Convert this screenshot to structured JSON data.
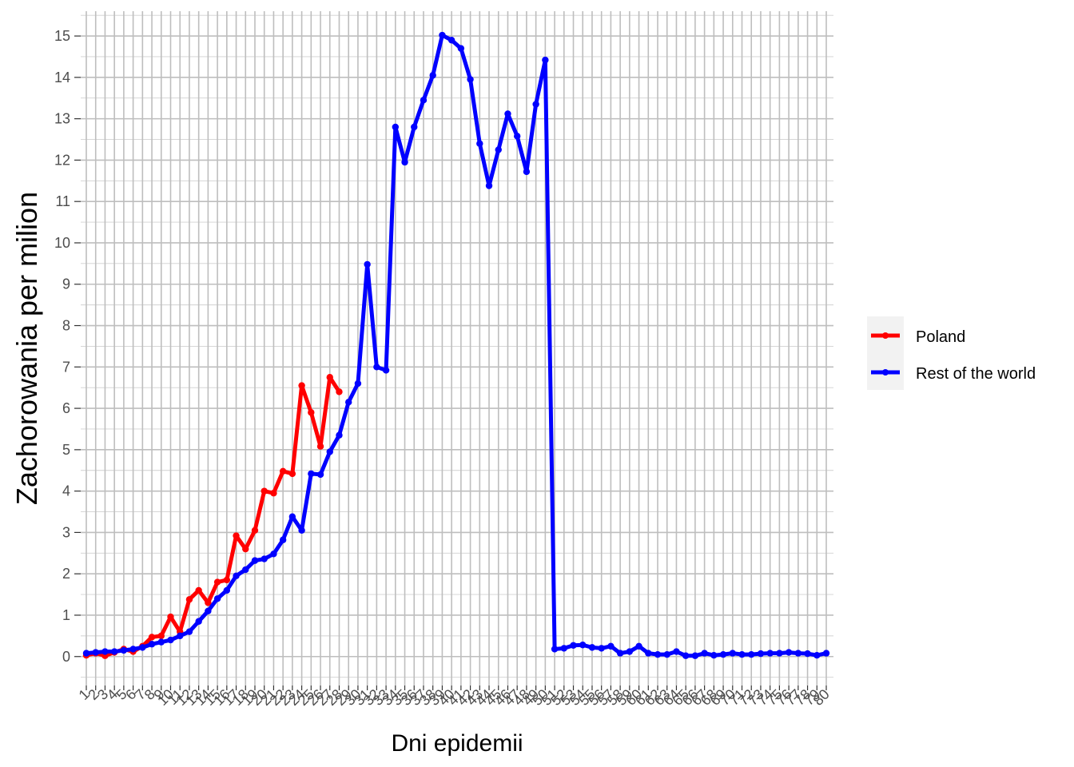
{
  "chart_data": {
    "type": "line",
    "xlabel": "Dni epidemii",
    "ylabel": "Zachorowania per milion",
    "ylim": [
      -0.7,
      15.6
    ],
    "y_ticks": [
      0,
      1,
      2,
      3,
      4,
      5,
      6,
      7,
      8,
      9,
      10,
      11,
      12,
      13,
      14,
      15
    ],
    "x_ticks": [
      1,
      2,
      3,
      4,
      5,
      6,
      7,
      8,
      9,
      10,
      11,
      12,
      13,
      14,
      15,
      16,
      17,
      18,
      19,
      20,
      21,
      22,
      23,
      24,
      25,
      26,
      27,
      28,
      29,
      30,
      31,
      32,
      33,
      34,
      35,
      36,
      37,
      38,
      39,
      40,
      41,
      42,
      43,
      44,
      45,
      46,
      47,
      48,
      49,
      50,
      51,
      52,
      53,
      54,
      55,
      56,
      57,
      58,
      59,
      60,
      61,
      62,
      63,
      64,
      65,
      66,
      67,
      68,
      69,
      70,
      71,
      72,
      73,
      74,
      75,
      76,
      77,
      78,
      79,
      80
    ],
    "grid": true,
    "legend_position": "right",
    "series": [
      {
        "name": "Poland",
        "color": "#ff0000",
        "values": [
          0.03,
          0.08,
          0.02,
          0.1,
          0.18,
          0.12,
          0.25,
          0.47,
          0.5,
          0.96,
          0.6,
          1.38,
          1.6,
          1.3,
          1.8,
          1.85,
          2.92,
          2.6,
          3.05,
          4.0,
          3.95,
          4.48,
          4.42,
          6.55,
          5.9,
          5.08,
          6.75,
          6.4
        ]
      },
      {
        "name": "Rest of the world",
        "color": "#0000ff",
        "values": [
          0.08,
          0.1,
          0.12,
          0.12,
          0.15,
          0.18,
          0.22,
          0.3,
          0.35,
          0.4,
          0.5,
          0.6,
          0.85,
          1.1,
          1.4,
          1.6,
          1.95,
          2.1,
          2.32,
          2.36,
          2.48,
          2.82,
          3.38,
          3.05,
          4.42,
          4.4,
          4.95,
          5.35,
          6.15,
          6.6,
          9.48,
          7.0,
          6.92,
          12.8,
          11.95,
          12.8,
          13.45,
          14.05,
          15.02,
          14.9,
          14.7,
          13.95,
          12.4,
          11.38,
          12.25,
          13.12,
          12.58,
          11.72,
          13.35,
          14.42,
          0.18,
          0.2,
          0.27,
          0.28,
          0.22,
          0.2,
          0.25,
          0.08,
          0.12,
          0.25,
          0.08,
          0.05,
          0.05,
          0.12,
          0.02,
          0.02,
          0.08,
          0.03,
          0.05,
          0.08,
          0.05,
          0.05,
          0.07,
          0.08,
          0.08,
          0.1,
          0.08,
          0.07,
          0.03,
          0.08
        ]
      }
    ]
  }
}
